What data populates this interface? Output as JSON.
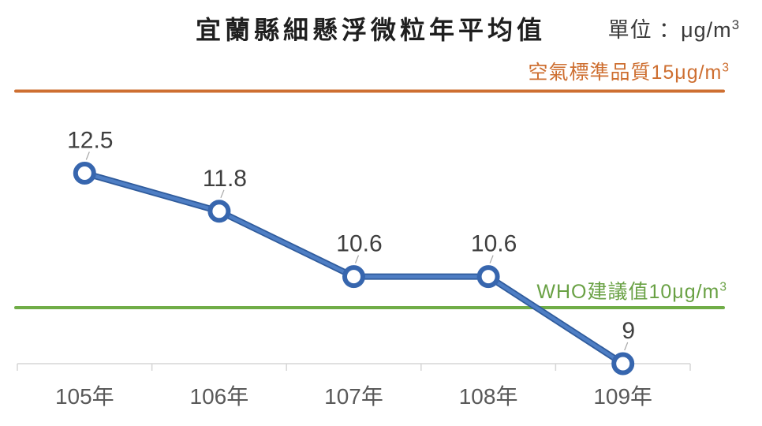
{
  "title": "宜蘭縣細懸浮微粒年平均值",
  "unit": {
    "label": "單位 ：μg/m",
    "sup": "3"
  },
  "annotations": {
    "standard": {
      "label": "空氣標準品質15μg/m",
      "sup": "3",
      "color": "#CE6F31",
      "value": 15
    },
    "who": {
      "label": "WHO建議值10μg/m",
      "sup": "3",
      "color": "#69A144",
      "value": 10
    }
  },
  "chart_data": {
    "type": "line",
    "title": "宜蘭縣細懸浮微粒年平均值",
    "unit": "μg/m³",
    "categories": [
      "105年",
      "106年",
      "107年",
      "108年",
      "109年"
    ],
    "values": [
      12.5,
      11.8,
      10.6,
      10.6,
      9
    ],
    "data_labels": [
      "12.5",
      "11.8",
      "10.6",
      "10.6",
      "9"
    ],
    "reference_lines": [
      {
        "label": "空氣標準品質15μg/m³",
        "value": 15,
        "color": "#CE6F31"
      },
      {
        "label": "WHO建議值10μg/m³",
        "value": 10,
        "color": "#70AD47"
      }
    ],
    "line_color": "#4472C4",
    "marker_style": "open-circle",
    "marker_fill": "#FFFFFF",
    "label_color": "#3F3F3F",
    "axis_label_color": "#595959",
    "ylim": [
      9,
      15
    ],
    "grid": false,
    "legend": false
  }
}
